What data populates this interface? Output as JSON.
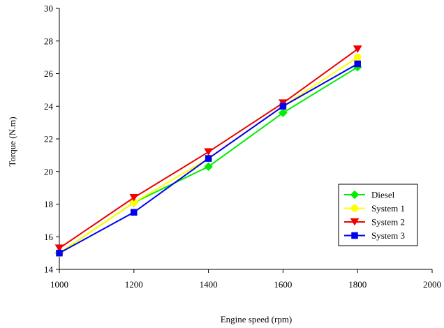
{
  "chart_data": {
    "type": "line",
    "title": "",
    "xlabel": "Engine speed (rpm)",
    "ylabel": "Torque (N.m)",
    "xlim": [
      1000,
      2000
    ],
    "ylim": [
      14,
      30
    ],
    "x_ticks": [
      "1000",
      "1200",
      "1400",
      "1600",
      "1800",
      "2000"
    ],
    "y_ticks": [
      "14",
      "16",
      "18",
      "20",
      "22",
      "24",
      "26",
      "28",
      "30"
    ],
    "grid": false,
    "legend_position": "bottom-right",
    "x": [
      1000,
      1200,
      1400,
      1600,
      1800
    ],
    "series": [
      {
        "name": "Diesel",
        "marker": "diamond",
        "color": "#00ee00",
        "values": [
          15.0,
          18.1,
          20.3,
          23.6,
          26.4
        ]
      },
      {
        "name": "System 1",
        "marker": "circle",
        "color": "#ffff00",
        "values": [
          15.0,
          18.1,
          20.8,
          24.0,
          27.0
        ]
      },
      {
        "name": "System 2",
        "marker": "triangle-down",
        "color": "#ee0000",
        "values": [
          15.3,
          18.4,
          21.2,
          24.2,
          27.5
        ]
      },
      {
        "name": "System 3",
        "marker": "square",
        "color": "#0000ee",
        "values": [
          15.0,
          17.5,
          20.8,
          24.0,
          26.6
        ]
      }
    ]
  }
}
